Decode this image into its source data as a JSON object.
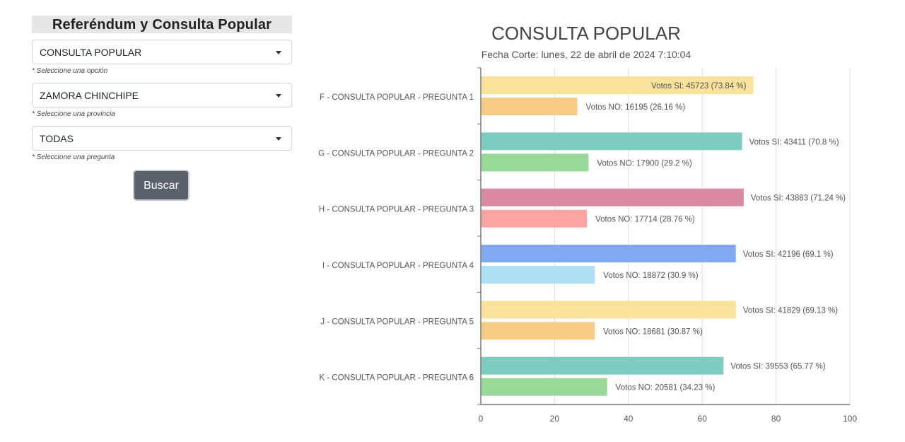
{
  "panel": {
    "title": "Referéndum y Consulta Popular",
    "select_option": {
      "value": "CONSULTA POPULAR",
      "hint": "* Seleccione una opción"
    },
    "select_province": {
      "value": "ZAMORA CHINCHIPE",
      "hint": "* Seleccione una provincia"
    },
    "select_question": {
      "value": "TODAS",
      "hint": "* Seleccione una pregunta"
    },
    "search_label": "Buscar"
  },
  "colors": {
    "si": [
      "#f9e29b",
      "#7ecbbf",
      "#d78aa2",
      "#82a8f2",
      "#f9e29b",
      "#7ecbbf"
    ],
    "no": [
      "#f7cb86",
      "#98d99a",
      "#f9a3a3",
      "#aee0f2",
      "#f7cb86",
      "#98d99a"
    ]
  },
  "chart_data": {
    "type": "bar",
    "orientation": "horizontal",
    "title": "CONSULTA POPULAR",
    "subtitle": "Fecha Corte: lunes, 22 de abril de 2024 7:10:04",
    "categories": [
      "F - CONSULTA POPULAR - PREGUNTA 1",
      "G - CONSULTA POPULAR - PREGUNTA 2",
      "H - CONSULTA POPULAR - PREGUNTA 3",
      "I - CONSULTA POPULAR - PREGUNTA 4",
      "J - CONSULTA POPULAR - PREGUNTA 5",
      "K - CONSULTA POPULAR - PREGUNTA 6"
    ],
    "series": [
      {
        "values": [
          73.84,
          70.8,
          71.24,
          69.1,
          69.13,
          65.77
        ],
        "labels": [
          "Votos SI: 45723 (73.84 %)",
          "Votos SI: 43411 (70.8 %)",
          "Votos SI: 43883 (71.24 %)",
          "Votos SI: 42196 (69.1 %)",
          "Votos SI: 41829 (69.13 %)",
          "Votos SI: 39553 (65.77 %)"
        ]
      },
      {
        "values": [
          26.16,
          29.2,
          28.76,
          30.9,
          30.87,
          34.23
        ],
        "labels": [
          "Votos NO: 16195 (26.16 %)",
          "Votos NO: 17900 (29.2 %)",
          "Votos NO: 17714 (28.76 %)",
          "Votos NO: 18872 (30.9 %)",
          "Votos NO: 18681 (30.87 %)",
          "Votos NO: 20581 (34.23 %)"
        ]
      }
    ],
    "xlim": [
      0,
      100
    ],
    "xticks": [
      "0",
      "20",
      "40",
      "60",
      "80",
      "100"
    ],
    "grid": true
  }
}
